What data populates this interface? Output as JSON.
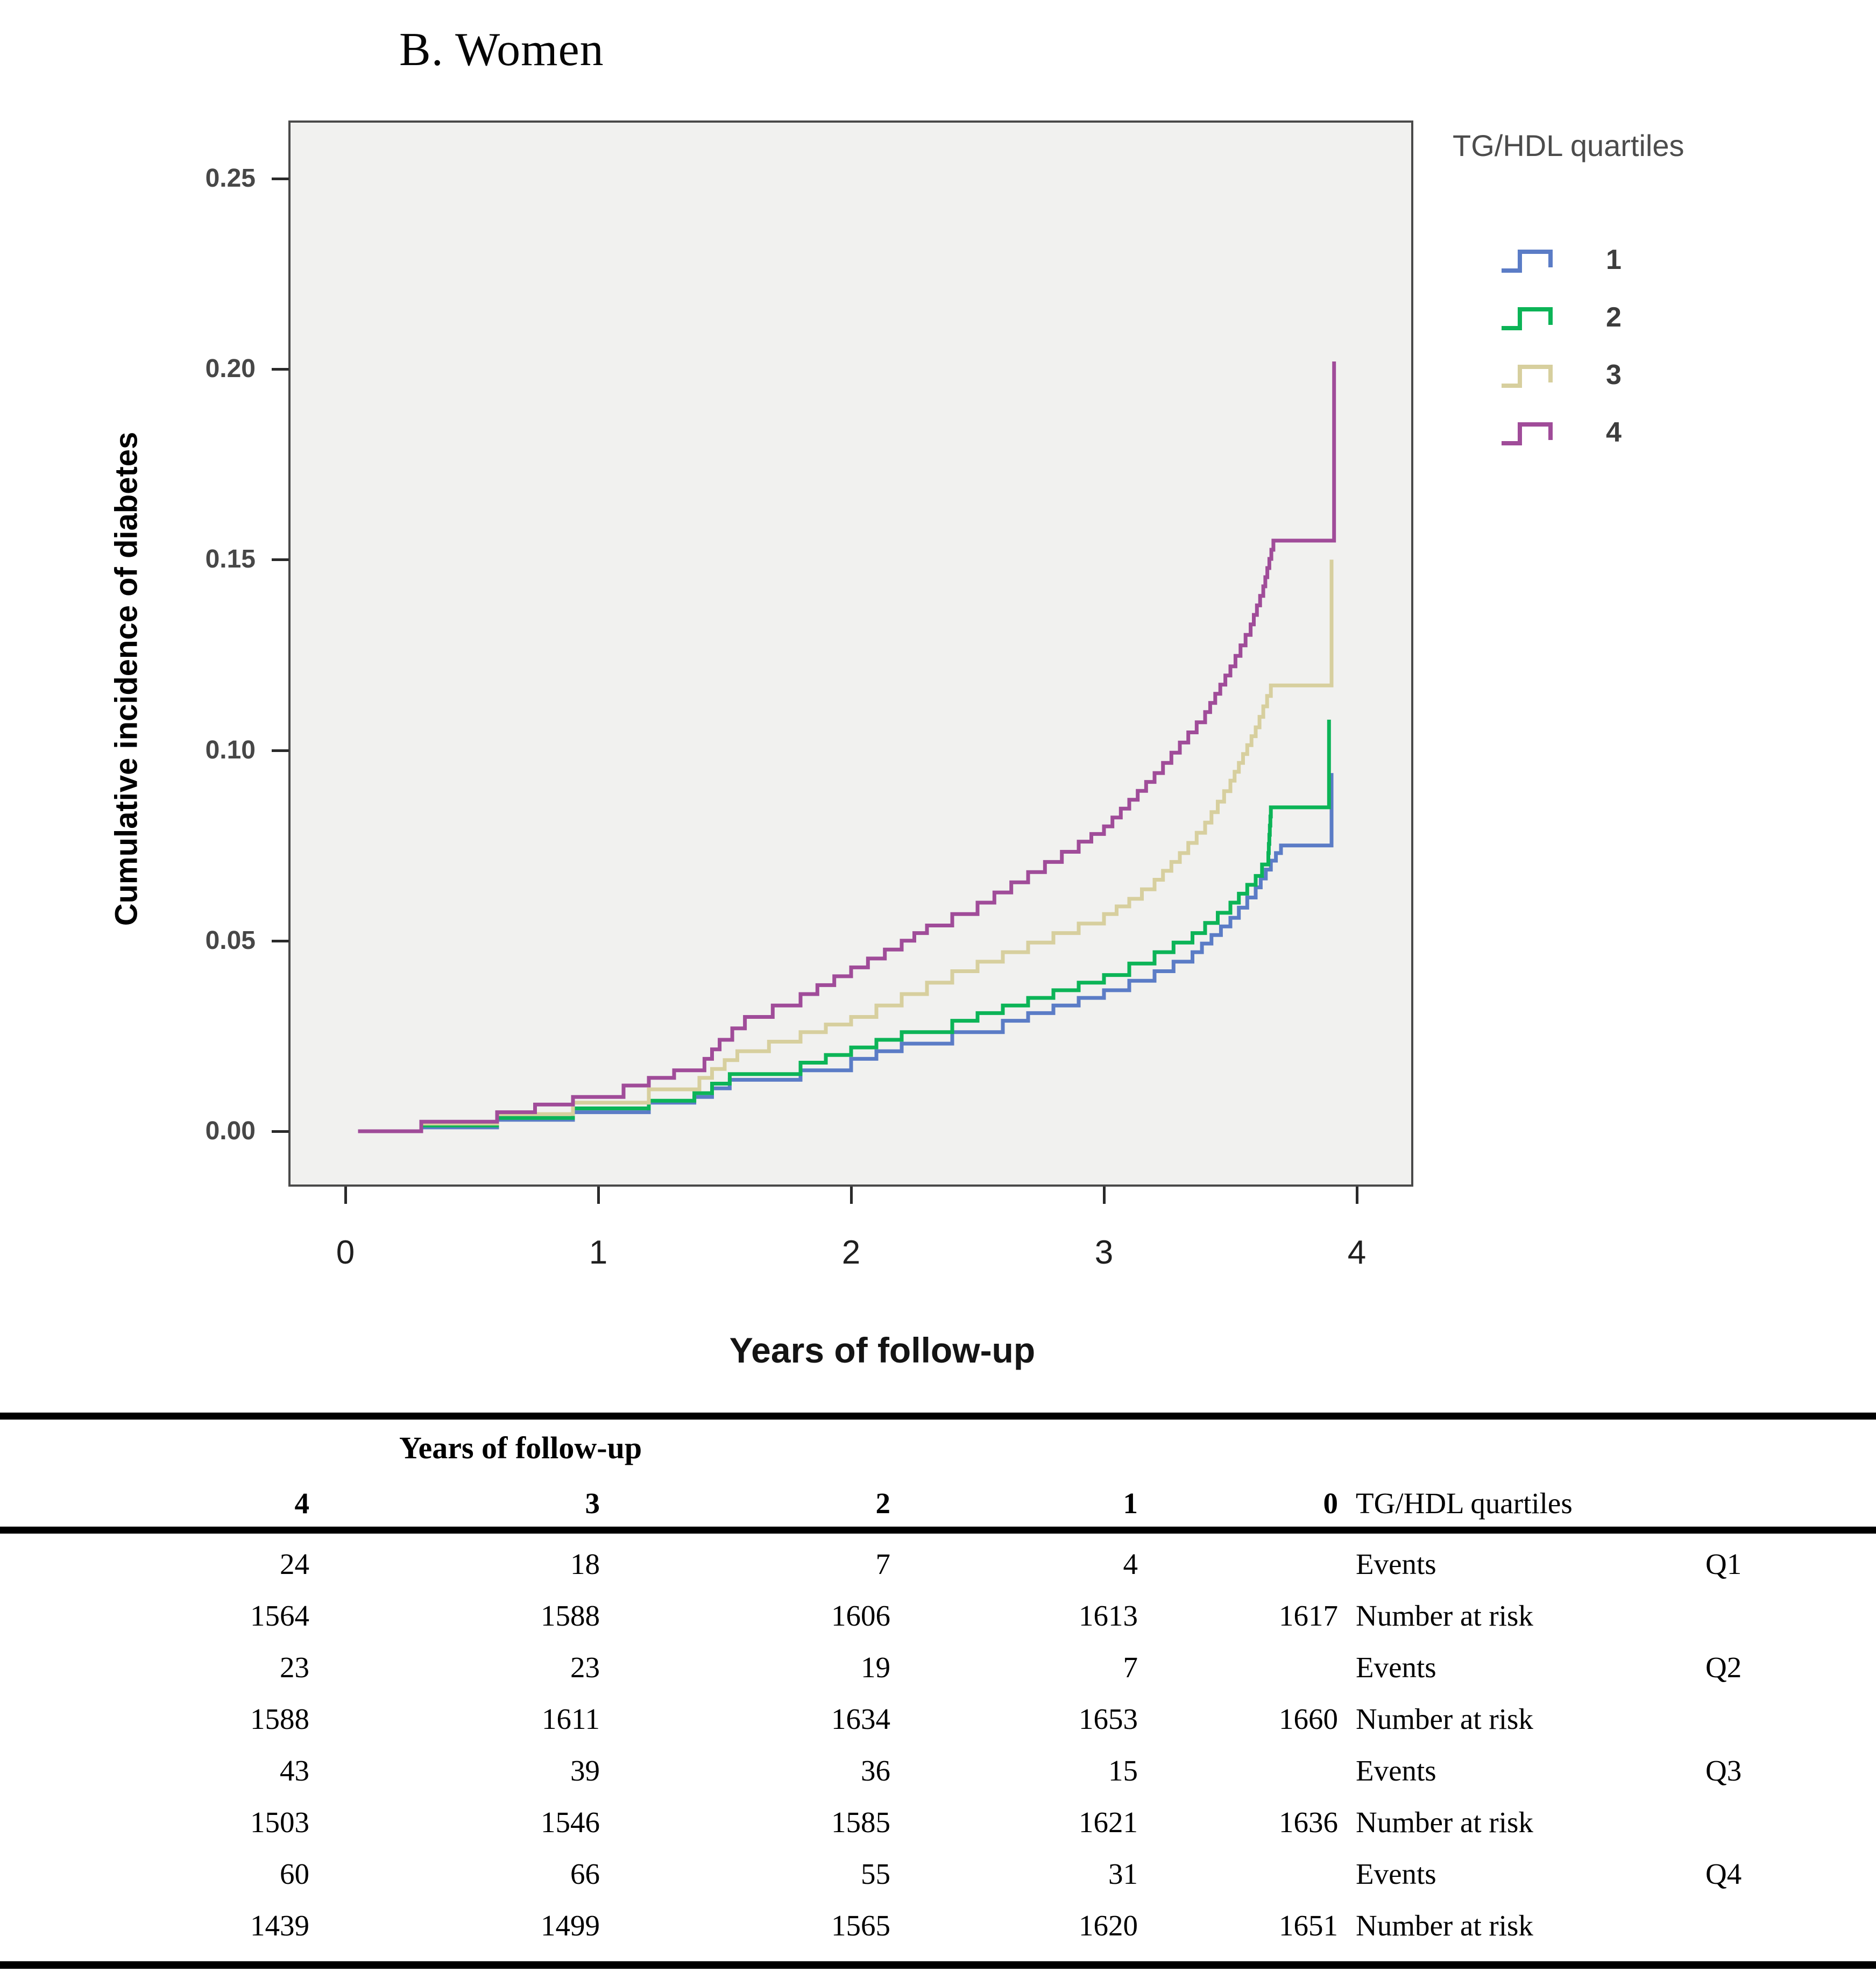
{
  "page": {
    "title": "B. Women"
  },
  "chart": {
    "y_axis": {
      "title": "Cumulative incidence of diabetes",
      "ticks": [
        {
          "label": "0.25",
          "v": 0.25
        },
        {
          "label": "0.20",
          "v": 0.2
        },
        {
          "label": "0.15",
          "v": 0.15
        },
        {
          "label": "0.10",
          "v": 0.1
        },
        {
          "label": "0.05",
          "v": 0.05
        },
        {
          "label": "0.00",
          "v": 0.0
        }
      ]
    },
    "x_axis": {
      "title": "Years of follow-up",
      "ticks": [
        {
          "label": "0",
          "v": 0
        },
        {
          "label": "1",
          "v": 1
        },
        {
          "label": "2",
          "v": 2
        },
        {
          "label": "3",
          "v": 3
        },
        {
          "label": "4",
          "v": 4
        }
      ]
    },
    "legend": {
      "title": "TG/HDL quartiles",
      "entries": [
        {
          "label": "1",
          "color": "#5b7cc6"
        },
        {
          "label": "2",
          "color": "#0cb457"
        },
        {
          "label": "3",
          "color": "#d7cf9e"
        },
        {
          "label": "4",
          "color": "#a04c99"
        }
      ]
    }
  },
  "chart_data": {
    "type": "line",
    "style": "step-cumulative-incidence",
    "title": "B. Women",
    "xlabel": "Years of follow-up",
    "ylabel": "Cumulative incidence of diabetes",
    "xlim": [
      0,
      4.2
    ],
    "ylim": [
      0,
      0.265
    ],
    "x_ticks": [
      0,
      1,
      2,
      3,
      4
    ],
    "y_ticks": [
      0.0,
      0.05,
      0.1,
      0.15,
      0.2,
      0.25
    ],
    "grid": false,
    "plot_background": "#f1f1ef",
    "legend_title": "TG/HDL quartiles",
    "legend_position": "right",
    "series": [
      {
        "name": "1",
        "color": "#5b7cc6",
        "points": [
          [
            0.05,
            0.0
          ],
          [
            0.3,
            0.001
          ],
          [
            0.6,
            0.003
          ],
          [
            0.9,
            0.005
          ],
          [
            1.2,
            0.0075
          ],
          [
            1.38,
            0.009
          ],
          [
            1.52,
            0.0135
          ],
          [
            1.8,
            0.016
          ],
          [
            2.0,
            0.019
          ],
          [
            2.2,
            0.023
          ],
          [
            2.4,
            0.026
          ],
          [
            2.6,
            0.029
          ],
          [
            2.8,
            0.033
          ],
          [
            3.0,
            0.037
          ],
          [
            3.2,
            0.042
          ],
          [
            3.35,
            0.047
          ],
          [
            3.5,
            0.056
          ],
          [
            3.6,
            0.064
          ],
          [
            3.66,
            0.071
          ],
          [
            3.7,
            0.075
          ],
          [
            3.9,
            0.075
          ],
          [
            3.9,
            0.094
          ]
        ]
      },
      {
        "name": "2",
        "color": "#0cb457",
        "points": [
          [
            0.05,
            0.0
          ],
          [
            0.3,
            0.0015
          ],
          [
            0.6,
            0.0035
          ],
          [
            0.9,
            0.006
          ],
          [
            1.2,
            0.008
          ],
          [
            1.38,
            0.01
          ],
          [
            1.52,
            0.015
          ],
          [
            1.8,
            0.018
          ],
          [
            2.0,
            0.022
          ],
          [
            2.2,
            0.026
          ],
          [
            2.4,
            0.029
          ],
          [
            2.6,
            0.033
          ],
          [
            2.8,
            0.037
          ],
          [
            3.0,
            0.041
          ],
          [
            3.2,
            0.047
          ],
          [
            3.35,
            0.052
          ],
          [
            3.5,
            0.06
          ],
          [
            3.6,
            0.067
          ],
          [
            3.65,
            0.073
          ],
          [
            3.66,
            0.085
          ],
          [
            3.89,
            0.085
          ],
          [
            3.89,
            0.108
          ]
        ]
      },
      {
        "name": "3",
        "color": "#d7cf9e",
        "points": [
          [
            0.05,
            0.0
          ],
          [
            0.3,
            0.002
          ],
          [
            0.6,
            0.0045
          ],
          [
            0.9,
            0.0075
          ],
          [
            1.2,
            0.011
          ],
          [
            1.4,
            0.014
          ],
          [
            1.55,
            0.021
          ],
          [
            1.8,
            0.026
          ],
          [
            2.0,
            0.03
          ],
          [
            2.2,
            0.036
          ],
          [
            2.4,
            0.042
          ],
          [
            2.6,
            0.047
          ],
          [
            2.8,
            0.052
          ],
          [
            3.0,
            0.057
          ],
          [
            3.1,
            0.061
          ],
          [
            3.2,
            0.066
          ],
          [
            3.3,
            0.073
          ],
          [
            3.4,
            0.081
          ],
          [
            3.5,
            0.092
          ],
          [
            3.6,
            0.106
          ],
          [
            3.66,
            0.117
          ],
          [
            3.9,
            0.117
          ],
          [
            3.9,
            0.15
          ]
        ]
      },
      {
        "name": "4",
        "color": "#a04c99",
        "points": [
          [
            0.05,
            0.0
          ],
          [
            0.3,
            0.0025
          ],
          [
            0.6,
            0.005
          ],
          [
            0.9,
            0.009
          ],
          [
            1.1,
            0.012
          ],
          [
            1.3,
            0.016
          ],
          [
            1.42,
            0.019
          ],
          [
            1.48,
            0.024
          ],
          [
            1.58,
            0.03
          ],
          [
            1.8,
            0.036
          ],
          [
            2.0,
            0.043
          ],
          [
            2.2,
            0.05
          ],
          [
            2.3,
            0.054
          ],
          [
            2.5,
            0.06
          ],
          [
            2.7,
            0.068
          ],
          [
            2.9,
            0.076
          ],
          [
            3.0,
            0.08
          ],
          [
            3.1,
            0.087
          ],
          [
            3.2,
            0.094
          ],
          [
            3.3,
            0.102
          ],
          [
            3.4,
            0.11
          ],
          [
            3.5,
            0.122
          ],
          [
            3.58,
            0.133
          ],
          [
            3.63,
            0.143
          ],
          [
            3.67,
            0.155
          ],
          [
            3.91,
            0.155
          ],
          [
            3.91,
            0.202
          ]
        ]
      }
    ]
  },
  "table": {
    "header_group": "Years of follow-up",
    "columns": [
      "4",
      "3",
      "2",
      "1",
      "0"
    ],
    "row_label_header": "TG/HDL quartiles",
    "rows": [
      {
        "q": "Q1",
        "label": "Events",
        "values": [
          "24",
          "18",
          "7",
          "4",
          ""
        ]
      },
      {
        "q": "",
        "label": "Number at risk",
        "values": [
          "1564",
          "1588",
          "1606",
          "1613",
          "1617"
        ]
      },
      {
        "q": "Q2",
        "label": "Events",
        "values": [
          "23",
          "23",
          "19",
          "7",
          ""
        ]
      },
      {
        "q": "",
        "label": "Number at risk",
        "values": [
          "1588",
          "1611",
          "1634",
          "1653",
          "1660"
        ]
      },
      {
        "q": "Q3",
        "label": "Events",
        "values": [
          "43",
          "39",
          "36",
          "15",
          ""
        ]
      },
      {
        "q": "",
        "label": "Number at risk",
        "values": [
          "1503",
          "1546",
          "1585",
          "1621",
          "1636"
        ]
      },
      {
        "q": "Q4",
        "label": "Events",
        "values": [
          "60",
          "66",
          "55",
          "31",
          ""
        ]
      },
      {
        "q": "",
        "label": "Number at risk",
        "values": [
          "1439",
          "1499",
          "1565",
          "1620",
          "1651"
        ]
      }
    ]
  }
}
